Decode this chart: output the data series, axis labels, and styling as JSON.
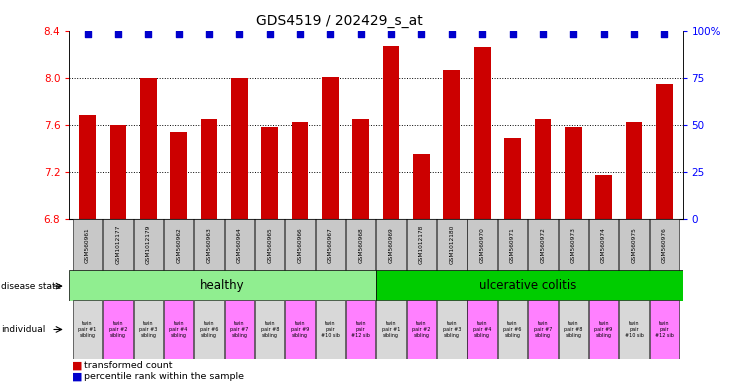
{
  "title": "GDS4519 / 202429_s_at",
  "samples": [
    "GSM560961",
    "GSM1012177",
    "GSM1012179",
    "GSM560962",
    "GSM560963",
    "GSM560964",
    "GSM560965",
    "GSM560966",
    "GSM560967",
    "GSM560968",
    "GSM560969",
    "GSM1012178",
    "GSM1012180",
    "GSM560970",
    "GSM560971",
    "GSM560972",
    "GSM560973",
    "GSM560974",
    "GSM560975",
    "GSM560976"
  ],
  "bar_values": [
    7.68,
    7.6,
    8.0,
    7.54,
    7.65,
    8.0,
    7.58,
    7.62,
    8.01,
    7.65,
    8.27,
    7.35,
    8.07,
    8.26,
    7.49,
    7.65,
    7.58,
    7.17,
    7.62,
    7.95
  ],
  "individual_labels": [
    "twin\npair #1\nsibling",
    "twin\npair #2\nsibling",
    "twin\npair #3\nsibling",
    "twin\npair #4\nsibling",
    "twin\npair #6\nsibling",
    "twin\npair #7\nsibling",
    "twin\npair #8\nsibling",
    "twin\npair #9\nsibling",
    "twin\npair\n#10 sib",
    "twin\npair\n#12 sib",
    "twin\npair #1\nsibling",
    "twin\npair #2\nsibling",
    "twin\npair #3\nsibling",
    "twin\npair #4\nsibling",
    "twin\npair #6\nsibling",
    "twin\npair #7\nsibling",
    "twin\npair #8\nsibling",
    "twin\npair #9\nsibling",
    "twin\npair\n#10 sib",
    "twin\npair\n#12 sib"
  ],
  "individual_colors": [
    "#D8D8D8",
    "#FF80FF",
    "#D8D8D8",
    "#FF80FF",
    "#D8D8D8",
    "#FF80FF",
    "#D8D8D8",
    "#FF80FF",
    "#D8D8D8",
    "#FF80FF",
    "#D8D8D8",
    "#FF80FF",
    "#D8D8D8",
    "#FF80FF",
    "#D8D8D8",
    "#FF80FF",
    "#D8D8D8",
    "#FF80FF",
    "#D8D8D8",
    "#FF80FF"
  ],
  "ylim_left": [
    6.8,
    8.4
  ],
  "ylim_right": [
    0,
    100
  ],
  "yticks_left": [
    6.8,
    7.2,
    7.6,
    8.0,
    8.4
  ],
  "yticks_right": [
    0,
    25,
    50,
    75,
    100
  ],
  "bar_color": "#CC0000",
  "dot_color": "#0000CC",
  "healthy_color": "#90EE90",
  "colitis_color": "#00CC00",
  "xtick_bg_color": "#C8C8C8",
  "legend_dot_label": "percentile rank within the sample",
  "legend_bar_label": "transformed count",
  "grid_lines": [
    7.2,
    7.6,
    8.0
  ]
}
